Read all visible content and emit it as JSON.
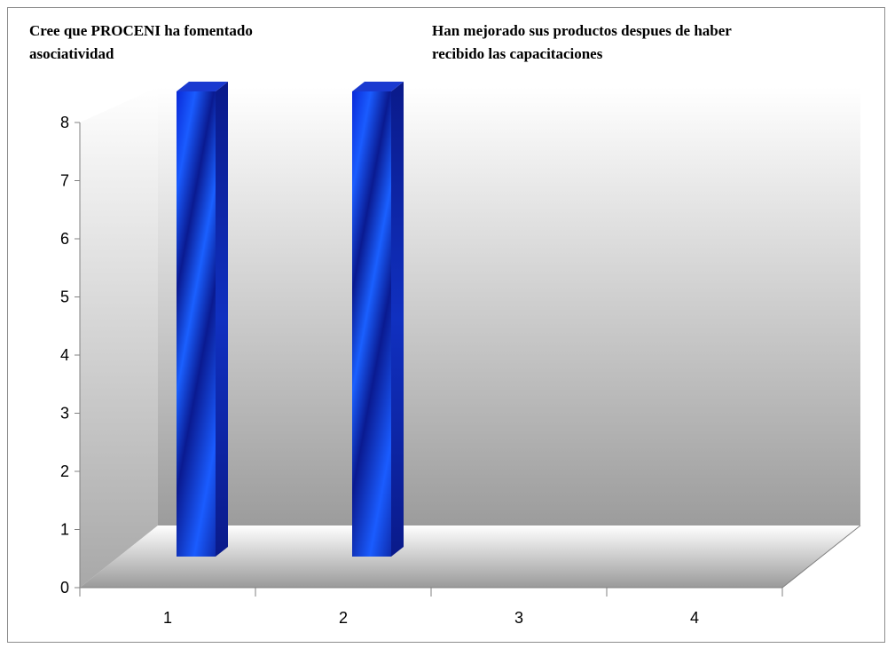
{
  "titles": {
    "left": "Cree que PROCENI ha fomentado asociatividad",
    "right": "Han mejorado sus productos despues de haber recibido las capacitaciones"
  },
  "chart_data": {
    "type": "bar",
    "categories": [
      "1",
      "2",
      "3",
      "4"
    ],
    "values": [
      8,
      8,
      0,
      0
    ],
    "ylim": [
      0,
      8
    ],
    "yticks": [
      "0",
      "1",
      "2",
      "3",
      "4",
      "5",
      "6",
      "7",
      "8"
    ],
    "grid": false,
    "legend": "none",
    "bar_color": "#1040e0"
  }
}
